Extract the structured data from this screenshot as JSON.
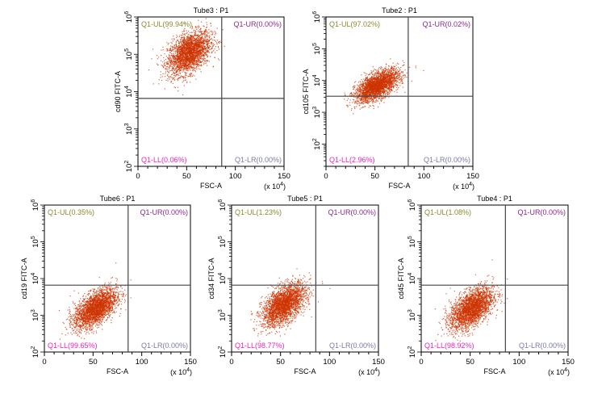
{
  "chart_data": [
    {
      "type": "scatter",
      "title": "Tube3 : P1",
      "xlabel": "FSC-A",
      "ylabel": "cd90 FITC-A",
      "x_multiplier": "(x 10^4)",
      "xlim": [
        0,
        150
      ],
      "ylim_log10": [
        2,
        6
      ],
      "x_ticks": [
        "0",
        "50",
        "100",
        "150"
      ],
      "y_ticks": [
        2,
        3,
        4,
        5,
        6
      ],
      "gate": {
        "x": 86,
        "y": 6600
      },
      "quadrants": {
        "UL": "Q1-UL(99.94%)",
        "UR": "Q1-UR(0.00%)",
        "LL": "Q1-LL(0.06%)",
        "LR": "Q1-LR(0.00%)"
      },
      "population": {
        "x_center": 52,
        "y_log_center": 5.05,
        "x_spread": 11,
        "y_log_spread": 0.26,
        "slope": 0.012,
        "count": 2600
      }
    },
    {
      "type": "scatter",
      "title": "Tube2 : P1",
      "xlabel": "FSC-A",
      "ylabel": "cd105 FITC-A",
      "x_multiplier": "(x 10^4)",
      "xlim": [
        0,
        150
      ],
      "ylim_log10": [
        1.3,
        6
      ],
      "x_ticks": [
        "0",
        "50",
        "100",
        "150"
      ],
      "y_ticks": [
        2,
        3,
        4,
        5,
        6
      ],
      "gate": {
        "x": 84,
        "y": 3200
      },
      "quadrants": {
        "UL": "Q1-UL(97.02%)",
        "UR": "Q1-UR(0.02%)",
        "LL": "Q1-LL(2.96%)",
        "LR": "Q1-LR(0.00%)"
      },
      "population": {
        "x_center": 52,
        "y_log_center": 3.85,
        "x_spread": 11,
        "y_log_spread": 0.2,
        "slope": 0.014,
        "count": 2600
      }
    },
    {
      "type": "scatter",
      "title": "Tube6 : P1",
      "xlabel": "FSC-A",
      "ylabel": "cd19 FITC-A",
      "x_multiplier": "(x 10^4)",
      "xlim": [
        0,
        150
      ],
      "ylim_log10": [
        2,
        6
      ],
      "x_ticks": [
        "0",
        "50",
        "100",
        "150"
      ],
      "y_ticks": [
        2,
        3,
        4,
        5,
        6
      ],
      "gate": {
        "x": 86,
        "y": 6600
      },
      "quadrants": {
        "UL": "Q1-UL(0.35%)",
        "UR": "Q1-UR(0.00%)",
        "LL": "Q1-LL(99.65%)",
        "LR": "Q1-LR(0.00%)"
      },
      "population": {
        "x_center": 52,
        "y_log_center": 3.2,
        "x_spread": 11,
        "y_log_spread": 0.22,
        "slope": 0.014,
        "count": 2600
      }
    },
    {
      "type": "scatter",
      "title": "Tube5 : P1",
      "xlabel": "FSC-A",
      "ylabel": "cd34 FITC-A",
      "x_multiplier": "(x 10^4)",
      "xlim": [
        0,
        150
      ],
      "ylim_log10": [
        2,
        6
      ],
      "x_ticks": [
        "0",
        "50",
        "100",
        "150"
      ],
      "y_ticks": [
        2,
        3,
        4,
        5,
        6
      ],
      "gate": {
        "x": 86,
        "y": 6600
      },
      "quadrants": {
        "UL": "Q1-UL(1.23%)",
        "UR": "Q1-UR(0.00%)",
        "LL": "Q1-LL(98.77%)",
        "LR": "Q1-LR(0.00%)"
      },
      "population": {
        "x_center": 53,
        "y_log_center": 3.3,
        "x_spread": 11,
        "y_log_spread": 0.24,
        "slope": 0.014,
        "count": 2600
      }
    },
    {
      "type": "scatter",
      "title": "Tube4 : P1",
      "xlabel": "FSC-A",
      "ylabel": "cd45 FITC-A",
      "x_multiplier": "(x 10^4)",
      "xlim": [
        0,
        150
      ],
      "ylim_log10": [
        2,
        6
      ],
      "x_ticks": [
        "0",
        "50",
        "100",
        "150"
      ],
      "y_ticks": [
        2,
        3,
        4,
        5,
        6
      ],
      "gate": {
        "x": 86,
        "y": 6600
      },
      "quadrants": {
        "UL": "Q1-UL(1.08%)",
        "UR": "Q1-UR(0.00%)",
        "LL": "Q1-LL(98.92%)",
        "LR": "Q1-LR(0.00%)"
      },
      "population": {
        "x_center": 51,
        "y_log_center": 3.2,
        "x_spread": 11,
        "y_log_spread": 0.24,
        "slope": 0.014,
        "count": 2600
      }
    }
  ],
  "colors": {
    "points": "#cc3300",
    "UL": "#8a8a2e",
    "UR": "#8a2a8a",
    "LL": "#ee22bb",
    "LR": "#7a7aa8",
    "frame": "#000000",
    "gate": "#000000"
  }
}
